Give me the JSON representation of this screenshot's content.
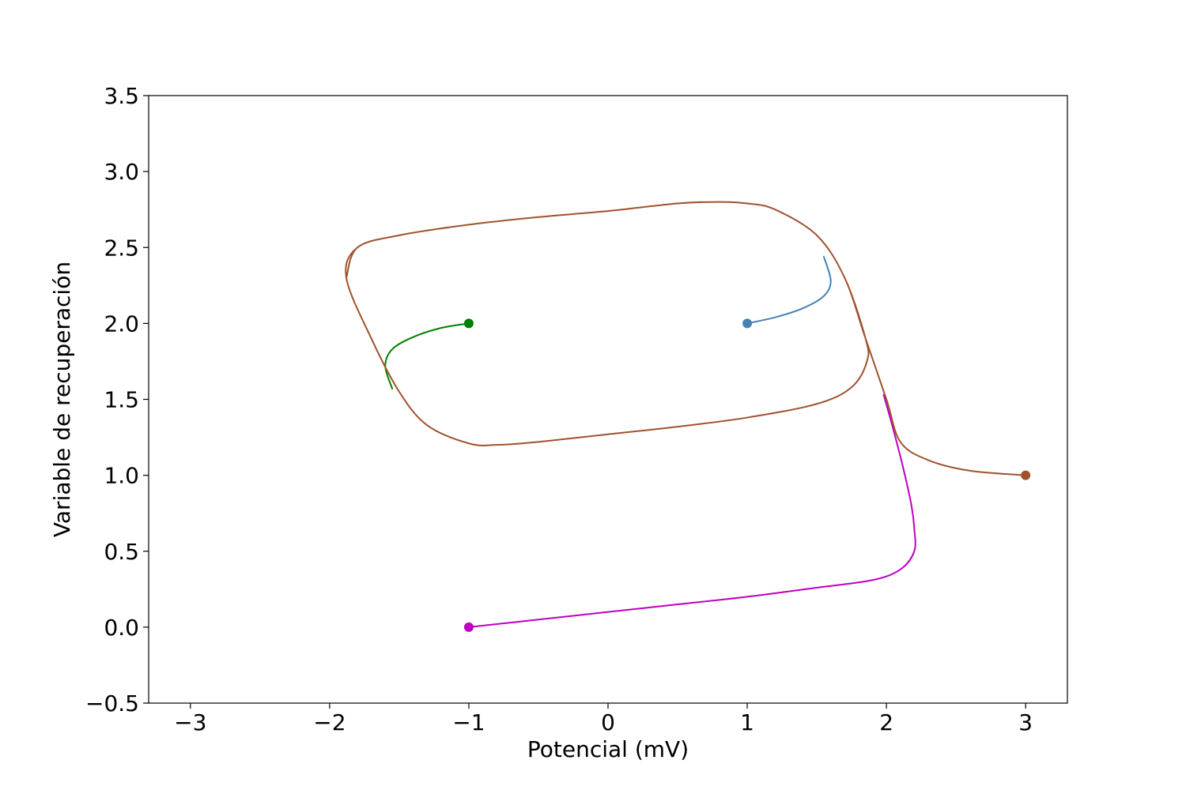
{
  "chart_data": {
    "type": "line",
    "title": "",
    "xlabel": "Potencial (mV)",
    "ylabel": "Variable de recuperación",
    "xlim": [
      -3.3,
      3.3
    ],
    "ylim": [
      -0.5,
      3.5
    ],
    "xticks": [
      -3,
      -2,
      -1,
      0,
      1,
      2,
      3
    ],
    "xtick_labels": [
      "−3",
      "−2",
      "−1",
      "0",
      "1",
      "2",
      "3"
    ],
    "yticks": [
      -0.5,
      0.0,
      0.5,
      1.0,
      1.5,
      2.0,
      2.5,
      3.0,
      3.5
    ],
    "ytick_labels": [
      "−0.5",
      "0.0",
      "0.5",
      "1.0",
      "1.5",
      "2.0",
      "2.5",
      "3.0",
      "3.5"
    ],
    "grid": false,
    "legend": "none",
    "series": [
      {
        "color": "#4682b4",
        "start": [
          1.0,
          2.0
        ],
        "points": [
          [
            1.0,
            2.0
          ],
          [
            1.2,
            2.04
          ],
          [
            1.4,
            2.1
          ],
          [
            1.55,
            2.18
          ],
          [
            1.6,
            2.28
          ],
          [
            1.55,
            2.44
          ]
        ]
      },
      {
        "color": "#008000",
        "start": [
          -1.0,
          2.0
        ],
        "points": [
          [
            -1.0,
            2.0
          ],
          [
            -1.2,
            1.97
          ],
          [
            -1.4,
            1.91
          ],
          [
            -1.55,
            1.83
          ],
          [
            -1.6,
            1.72
          ],
          [
            -1.55,
            1.57
          ]
        ]
      },
      {
        "color": "#c000c0",
        "start": [
          -1.0,
          0.0
        ],
        "points": [
          [
            -1.0,
            0.0
          ],
          [
            -0.5,
            0.05
          ],
          [
            0.0,
            0.1
          ],
          [
            0.5,
            0.15
          ],
          [
            1.0,
            0.2
          ],
          [
            1.5,
            0.26
          ],
          [
            1.9,
            0.31
          ],
          [
            2.1,
            0.38
          ],
          [
            2.2,
            0.5
          ],
          [
            2.2,
            0.65
          ],
          [
            2.18,
            0.8
          ],
          [
            2.12,
            1.05
          ],
          [
            2.05,
            1.3
          ],
          [
            1.98,
            1.53
          ]
        ]
      },
      {
        "color": "#a0522d",
        "start": [
          3.0,
          1.0
        ],
        "points": [
          [
            3.0,
            1.0
          ],
          [
            2.6,
            1.03
          ],
          [
            2.3,
            1.1
          ],
          [
            2.1,
            1.22
          ],
          [
            2.0,
            1.5
          ],
          [
            1.85,
            1.9
          ],
          [
            1.7,
            2.3
          ],
          [
            1.5,
            2.58
          ],
          [
            1.2,
            2.75
          ],
          [
            1.0,
            2.79
          ],
          [
            0.8,
            2.8
          ],
          [
            0.5,
            2.79
          ],
          [
            0.0,
            2.74
          ],
          [
            -0.5,
            2.7
          ],
          [
            -1.0,
            2.65
          ],
          [
            -1.5,
            2.58
          ],
          [
            -1.8,
            2.5
          ],
          [
            -1.88,
            2.3
          ],
          [
            -1.7,
            1.9
          ],
          [
            -1.5,
            1.55
          ],
          [
            -1.3,
            1.33
          ],
          [
            -1.0,
            1.21
          ],
          [
            -0.8,
            1.2
          ],
          [
            -0.5,
            1.22
          ],
          [
            0.0,
            1.27
          ],
          [
            0.5,
            1.32
          ],
          [
            1.0,
            1.38
          ],
          [
            1.5,
            1.47
          ],
          [
            1.75,
            1.58
          ],
          [
            1.86,
            1.75
          ],
          [
            1.85,
            1.9
          ],
          [
            1.7,
            2.3
          ],
          [
            1.5,
            2.58
          ],
          [
            1.2,
            2.75
          ],
          [
            1.0,
            2.79
          ],
          [
            0.8,
            2.8
          ],
          [
            0.5,
            2.79
          ],
          [
            0.0,
            2.74
          ],
          [
            -0.5,
            2.7
          ],
          [
            -1.0,
            2.65
          ],
          [
            -1.5,
            2.58
          ],
          [
            -1.8,
            2.5
          ],
          [
            -1.88,
            2.3
          ]
        ]
      }
    ]
  }
}
